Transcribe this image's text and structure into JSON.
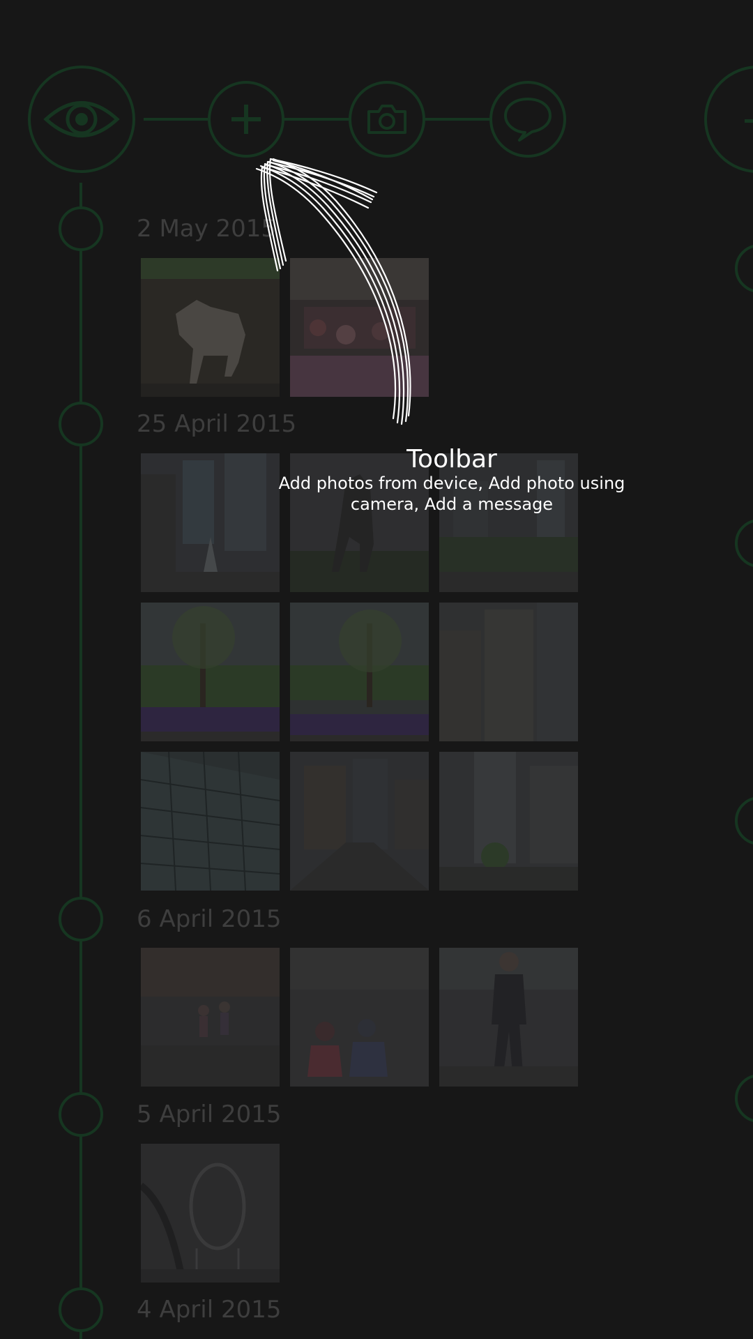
{
  "toolbar": {
    "buttons": [
      {
        "name": "view",
        "icon": "eye-icon"
      },
      {
        "name": "add-photos",
        "icon": "plus-icon"
      },
      {
        "name": "camera",
        "icon": "camera-icon"
      },
      {
        "name": "message",
        "icon": "speech-bubble-icon"
      }
    ],
    "accent_color": "#163621"
  },
  "coachmark": {
    "title": "Toolbar",
    "description": "Add photos from device, Add photo using camera, Add a message"
  },
  "timeline": {
    "groups": [
      {
        "date": "2 May 2015",
        "photo_count": 2
      },
      {
        "date": "25 April 2015",
        "photo_count": 9
      },
      {
        "date": "6 April 2015",
        "photo_count": 3
      },
      {
        "date": "5 April 2015",
        "photo_count": 1
      },
      {
        "date": "4 April 2015",
        "photo_count": 0
      }
    ]
  },
  "colors": {
    "background": "#171717",
    "line": "#163621",
    "date_text": "#3e3e3e",
    "overlay_text": "#ffffff"
  }
}
